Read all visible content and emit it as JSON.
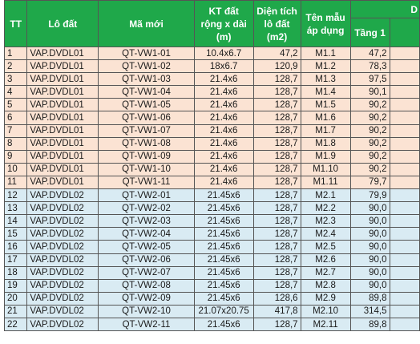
{
  "headers": {
    "tt": "TT",
    "lot": "Lô đất",
    "new_code": "Mã mới",
    "size": "KT đất rộng x dài (m)",
    "area": "Diện tích lô đất (m2)",
    "template": "Tên mẫu áp dụng",
    "group_partial": "D",
    "floor1": "Tầng 1"
  },
  "rows": [
    {
      "tt": "1",
      "lot": "VAP.DVDL01",
      "code": "QT-VW1-01",
      "size": "10.4x6.7",
      "area": "47,2",
      "tpl": "M1.1",
      "f1": "47,2",
      "group": 1
    },
    {
      "tt": "2",
      "lot": "VAP.DVDL01",
      "code": "QT-VW1-02",
      "size": "18x6.7",
      "area": "120,9",
      "tpl": "M1.2",
      "f1": "78,3",
      "group": 1
    },
    {
      "tt": "3",
      "lot": "VAP.DVDL01",
      "code": "QT-VW1-03",
      "size": "21.4x6",
      "area": "128,7",
      "tpl": "M1.3",
      "f1": "97,5",
      "group": 1
    },
    {
      "tt": "4",
      "lot": "VAP.DVDL01",
      "code": "QT-VW1-04",
      "size": "21.4x6",
      "area": "128,7",
      "tpl": "M1.4",
      "f1": "90,1",
      "group": 1
    },
    {
      "tt": "5",
      "lot": "VAP.DVDL01",
      "code": "QT-VW1-05",
      "size": "21.4x6",
      "area": "128,7",
      "tpl": "M1.5",
      "f1": "90,2",
      "group": 1
    },
    {
      "tt": "6",
      "lot": "VAP.DVDL01",
      "code": "QT-VW1-06",
      "size": "21.4x6",
      "area": "128,7",
      "tpl": "M1.6",
      "f1": "90,2",
      "group": 1
    },
    {
      "tt": "7",
      "lot": "VAP.DVDL01",
      "code": "QT-VW1-07",
      "size": "21.4x6",
      "area": "128,7",
      "tpl": "M1.7",
      "f1": "90,2",
      "group": 1
    },
    {
      "tt": "8",
      "lot": "VAP.DVDL01",
      "code": "QT-VW1-08",
      "size": "21.4x6",
      "area": "128,7",
      "tpl": "M1.8",
      "f1": "90,2",
      "group": 1
    },
    {
      "tt": "9",
      "lot": "VAP.DVDL01",
      "code": "QT-VW1-09",
      "size": "21.4x6",
      "area": "128,7",
      "tpl": "M1.9",
      "f1": "90,2",
      "group": 1
    },
    {
      "tt": "10",
      "lot": "VAP.DVDL01",
      "code": "QT-VW1-10",
      "size": "21.4x6",
      "area": "128,7",
      "tpl": "M1.10",
      "f1": "90,2",
      "group": 1
    },
    {
      "tt": "11",
      "lot": "VAP.DVDL01",
      "code": "QT-VW1-11",
      "size": "21.4x6",
      "area": "128,7",
      "tpl": "M1.11",
      "f1": "79,7",
      "group": 1
    },
    {
      "tt": "12",
      "lot": "VAP.DVDL02",
      "code": "QT-VW2-01",
      "size": "21.45x6",
      "area": "128,7",
      "tpl": "M2.1",
      "f1": "79,9",
      "group": 2
    },
    {
      "tt": "13",
      "lot": "VAP.DVDL02",
      "code": "QT-VW2-02",
      "size": "21.45x6",
      "area": "128,7",
      "tpl": "M2.2",
      "f1": "90,0",
      "group": 2
    },
    {
      "tt": "14",
      "lot": "VAP.DVDL02",
      "code": "QT-VW2-03",
      "size": "21.45x6",
      "area": "128,7",
      "tpl": "M2.3",
      "f1": "90,0",
      "group": 2
    },
    {
      "tt": "15",
      "lot": "VAP.DVDL02",
      "code": "QT-VW2-04",
      "size": "21.45x6",
      "area": "128,7",
      "tpl": "M2.4",
      "f1": "90,0",
      "group": 2
    },
    {
      "tt": "16",
      "lot": "VAP.DVDL02",
      "code": "QT-VW2-05",
      "size": "21.45x6",
      "area": "128,7",
      "tpl": "M2.5",
      "f1": "90,0",
      "group": 2
    },
    {
      "tt": "17",
      "lot": "VAP.DVDL02",
      "code": "QT-VW2-06",
      "size": "21.45x6",
      "area": "128,7",
      "tpl": "M2.6",
      "f1": "90,0",
      "group": 2
    },
    {
      "tt": "18",
      "lot": "VAP.DVDL02",
      "code": "QT-VW2-07",
      "size": "21.45x6",
      "area": "128,7",
      "tpl": "M2.7",
      "f1": "90,0",
      "group": 2
    },
    {
      "tt": "19",
      "lot": "VAP.DVDL02",
      "code": "QT-VW2-08",
      "size": "21.45x6",
      "area": "128,7",
      "tpl": "M2.8",
      "f1": "90,0",
      "group": 2
    },
    {
      "tt": "20",
      "lot": "VAP.DVDL02",
      "code": "QT-VW2-09",
      "size": "21.45x6",
      "area": "128,6",
      "tpl": "M2.9",
      "f1": "89,8",
      "group": 2
    },
    {
      "tt": "21",
      "lot": "VAP.DVDL02",
      "code": "QT-VW2-10",
      "size": "21.07x20.75",
      "area": "417,8",
      "tpl": "M2.10",
      "f1": "314,5",
      "group": 2
    },
    {
      "tt": "22",
      "lot": "VAP.DVDL02",
      "code": "QT-VW2-11",
      "size": "21.45x6",
      "area": "128,7",
      "tpl": "M2.11",
      "f1": "89,8",
      "group": 2
    }
  ]
}
